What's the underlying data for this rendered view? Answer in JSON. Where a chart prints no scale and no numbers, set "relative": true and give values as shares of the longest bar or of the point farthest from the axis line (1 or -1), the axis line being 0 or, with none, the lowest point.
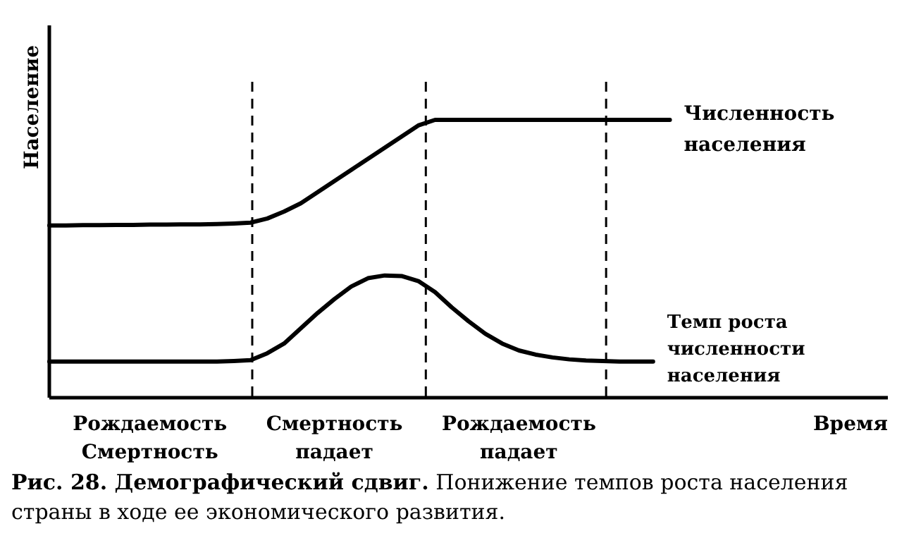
{
  "chart_data": {
    "type": "line",
    "relative": true,
    "title": "Рис. 28. Демографический сдвиг.",
    "subtitle": "Понижение темпов роста населения страны в ходе ее экономического развития.",
    "xlabel": "Время",
    "ylabel": "Население",
    "categories": [
      null,
      null,
      null,
      null,
      null,
      null,
      "Рождаемость\nСмертность",
      null,
      null,
      null,
      null,
      null,
      null,
      null,
      null,
      null,
      null,
      "Смертность\nпадает",
      null,
      null,
      null,
      null,
      null,
      null,
      null,
      null,
      null,
      null,
      "Рождаемость\nпадает",
      null,
      null,
      null,
      null,
      null,
      null,
      null,
      null,
      null,
      null,
      null,
      null,
      null,
      null,
      null,
      null,
      null,
      null,
      null,
      null,
      null,
      null
    ],
    "series": [
      {
        "name": "Численность\nнаселения",
        "color": "#000000",
        "values": [
          0.62,
          0.62,
          0.621,
          0.621,
          0.622,
          0.622,
          0.623,
          0.623,
          0.624,
          0.624,
          0.625,
          0.627,
          0.63,
          0.645,
          0.67,
          0.7,
          0.74,
          0.78,
          0.82,
          0.86,
          0.9,
          0.94,
          0.98,
          1.0,
          1.0,
          1.0,
          1.0,
          1.0,
          1.0,
          1.0,
          1.0,
          1.0,
          1.0,
          1.0,
          1.0,
          1.0,
          1.0,
          1.0,
          null,
          null,
          null,
          null,
          null,
          null,
          null,
          null,
          null,
          null,
          null,
          null,
          null
        ]
      },
      {
        "name": "Темп роста\nчисленности\nнаселения",
        "color": "#000000",
        "values": [
          0.13,
          0.13,
          0.13,
          0.13,
          0.13,
          0.13,
          0.13,
          0.13,
          0.13,
          0.13,
          0.13,
          0.132,
          0.135,
          0.16,
          0.195,
          0.25,
          0.305,
          0.355,
          0.4,
          0.43,
          0.44,
          0.438,
          0.42,
          0.38,
          0.325,
          0.275,
          0.23,
          0.195,
          0.17,
          0.155,
          0.145,
          0.138,
          0.134,
          0.132,
          0.13,
          0.13,
          0.13,
          null,
          null,
          null,
          null,
          null,
          null,
          null,
          null,
          null,
          null,
          null,
          null,
          null,
          null
        ]
      }
    ]
  }
}
